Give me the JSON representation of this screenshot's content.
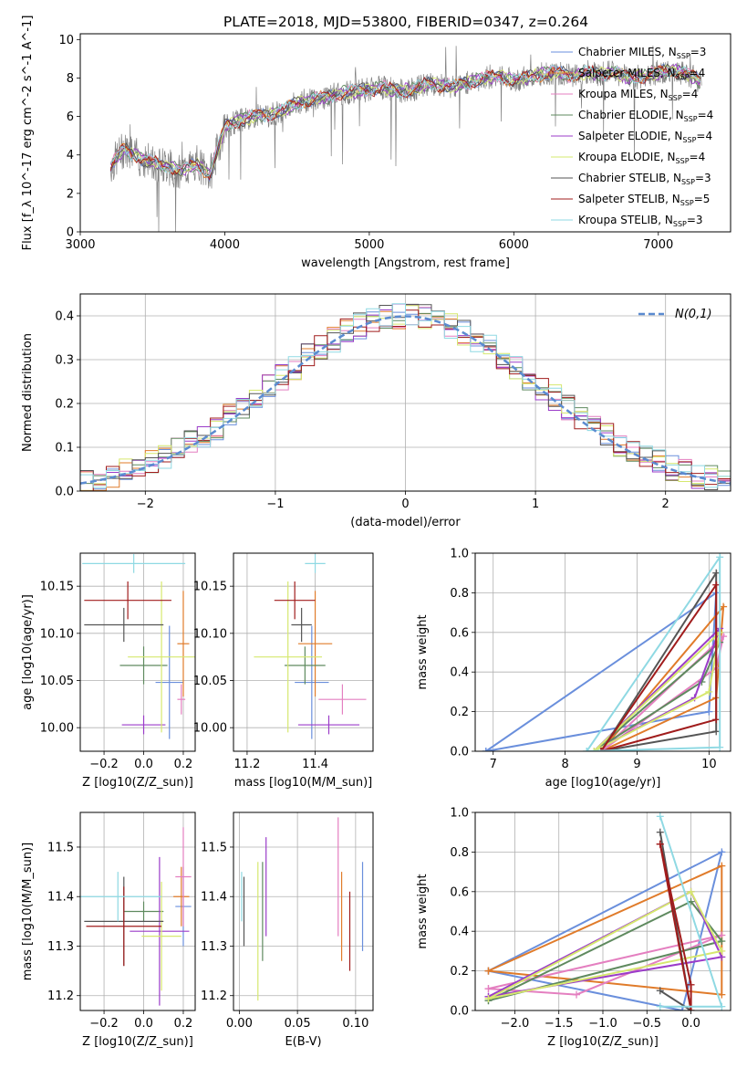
{
  "title": "PLATE=2018, MJD=53800, FIBERID=0347, z=0.264",
  "colors": {
    "grid": "#b0b0b0",
    "models": [
      "#6a8fdc",
      "#e07b2a",
      "#e47fc0",
      "#5f8a5f",
      "#9b3cc9",
      "#d6e86f",
      "#555555",
      "#a01c1c",
      "#8fd9e3"
    ],
    "data_spectrum": "#808080",
    "normal_curve": "#5b8bd0"
  },
  "legend_models": [
    {
      "label": "Chabrier MILES, N",
      "sub": "SSP",
      "tail": "=3"
    },
    {
      "label": "Salpeter MILES, N",
      "sub": "SSP",
      "tail": "=4"
    },
    {
      "label": "Kroupa MILES, N",
      "sub": "SSP",
      "tail": "=4"
    },
    {
      "label": "Chabrier ELODIE, N",
      "sub": "SSP",
      "tail": "=4"
    },
    {
      "label": "Salpeter ELODIE, N",
      "sub": "SSP",
      "tail": "=4"
    },
    {
      "label": "Kroupa ELODIE, N",
      "sub": "SSP",
      "tail": "=4"
    },
    {
      "label": "Chabrier STELIB, N",
      "sub": "SSP",
      "tail": "=3"
    },
    {
      "label": "Salpeter STELIB, N",
      "sub": "SSP",
      "tail": "=5"
    },
    {
      "label": "Kroupa STELIB, N",
      "sub": "SSP",
      "tail": "=3"
    }
  ],
  "chart_data": [
    {
      "id": "spectrum",
      "type": "line",
      "xlabel": "wavelength [Angstrom, rest frame]",
      "ylabel": "Flux [f_λ 10^-17 erg cm^-2 s^-1 A^-1]",
      "xlim": [
        3000,
        7500
      ],
      "ylim": [
        0,
        10.3
      ],
      "xticks": [
        3000,
        4000,
        5000,
        6000,
        7000
      ],
      "yticks": [
        0,
        2,
        4,
        6,
        8,
        10
      ],
      "continuum": {
        "x": [
          3200,
          3300,
          3400,
          3500,
          3600,
          3700,
          3800,
          3900,
          4000,
          4100,
          4200,
          4300,
          4400,
          4500,
          4600,
          4700,
          4800,
          4900,
          5000,
          5100,
          5200,
          5300,
          5400,
          5500,
          5600,
          5700,
          5800,
          5900,
          6000,
          6100,
          6200,
          6300,
          6400,
          6500,
          6600,
          6700,
          6800,
          6900,
          7000,
          7100,
          7200,
          7300
        ],
        "y": [
          3.3,
          4.3,
          3.9,
          3.6,
          3.4,
          3.2,
          3.5,
          3.0,
          5.5,
          5.8,
          6.0,
          6.1,
          6.3,
          6.7,
          6.9,
          7.0,
          7.2,
          7.3,
          7.4,
          7.5,
          7.3,
          7.4,
          7.7,
          7.6,
          7.6,
          7.8,
          8.0,
          8.1,
          7.9,
          8.0,
          8.2,
          8.3,
          8.1,
          8.3,
          8.2,
          8.3,
          8.0,
          8.1,
          8.3,
          8.4,
          8.2,
          7.8
        ]
      }
    },
    {
      "id": "residuals",
      "type": "line",
      "xlabel": "(data-model)/error",
      "ylabel": "Normed distribution",
      "xlim": [
        -2.5,
        2.5
      ],
      "ylim": [
        0,
        0.45
      ],
      "xticks": [
        -2,
        -1,
        0,
        1,
        2
      ],
      "yticks": [
        0.0,
        0.1,
        0.2,
        0.3,
        0.4
      ],
      "normal_label": "N(0,1)"
    },
    {
      "id": "Z_age",
      "type": "scatter",
      "xlabel": "Z [log10(Z/Z_sun)]",
      "ylabel": "age [log10(age/yr)]",
      "xlim": [
        -0.32,
        0.26
      ],
      "ylim": [
        9.975,
        10.185
      ],
      "xticks": [
        -0.2,
        0.0,
        0.2
      ],
      "yticks": [
        10.0,
        10.05,
        10.1,
        10.15
      ],
      "points": [
        {
          "x": 0.13,
          "y": 10.048,
          "xerr": 0.07,
          "yerr": 0.06
        },
        {
          "x": 0.2,
          "y": 10.089,
          "xerr": 0.03,
          "yerr": 0.056
        },
        {
          "x": 0.19,
          "y": 10.03,
          "xerr": 0.02,
          "yerr": 0.016
        },
        {
          "x": 0.0,
          "y": 10.066,
          "xerr": 0.12,
          "yerr": 0.02
        },
        {
          "x": 0.0,
          "y": 10.003,
          "xerr": 0.11,
          "yerr": 0.01
        },
        {
          "x": 0.09,
          "y": 10.075,
          "xerr": 0.17,
          "yerr": 0.08
        },
        {
          "x": -0.1,
          "y": 10.109,
          "xerr": 0.2,
          "yerr": 0.018
        },
        {
          "x": -0.08,
          "y": 10.135,
          "xerr": 0.22,
          "yerr": 0.02
        },
        {
          "x": -0.05,
          "y": 10.174,
          "xerr": 0.26,
          "yerr": 0.01
        }
      ]
    },
    {
      "id": "mass_age",
      "type": "scatter",
      "xlabel": "mass [log10(M/M_sun)]",
      "ylabel": "",
      "xlim": [
        11.16,
        11.57
      ],
      "ylim": [
        9.975,
        10.185
      ],
      "xticks": [
        11.2,
        11.4
      ],
      "yticks": [
        10.0,
        10.05,
        10.1,
        10.15
      ],
      "points": [
        {
          "x": 11.39,
          "y": 10.048,
          "xerr": 0.05,
          "yerr": 0.06
        },
        {
          "x": 11.4,
          "y": 10.089,
          "xerr": 0.05,
          "yerr": 0.056
        },
        {
          "x": 11.48,
          "y": 10.03,
          "xerr": 0.07,
          "yerr": 0.016
        },
        {
          "x": 11.37,
          "y": 10.066,
          "xerr": 0.06,
          "yerr": 0.02
        },
        {
          "x": 11.44,
          "y": 10.003,
          "xerr": 0.09,
          "yerr": 0.01
        },
        {
          "x": 11.32,
          "y": 10.075,
          "xerr": 0.1,
          "yerr": 0.08
        },
        {
          "x": 11.36,
          "y": 10.109,
          "xerr": 0.03,
          "yerr": 0.018
        },
        {
          "x": 11.34,
          "y": 10.135,
          "xerr": 0.06,
          "yerr": 0.02
        },
        {
          "x": 11.4,
          "y": 10.174,
          "xerr": 0.03,
          "yerr": 0.01
        }
      ]
    },
    {
      "id": "age_weight",
      "type": "line",
      "xlabel": "age [log10(age/yr)]",
      "ylabel": "mass weight",
      "xlim": [
        6.75,
        10.3
      ],
      "ylim": [
        0,
        1.0
      ],
      "xticks": [
        7,
        8,
        9,
        10
      ],
      "yticks": [
        0.0,
        0.2,
        0.4,
        0.6,
        0.8,
        1.0
      ],
      "series": [
        {
          "x": [
            6.9,
            10.1,
            10.0,
            6.9
          ],
          "y": [
            0.0,
            0.8,
            0.2,
            0.0
          ]
        },
        {
          "x": [
            8.5,
            10.2,
            10.1,
            8.5
          ],
          "y": [
            0.0,
            0.73,
            0.27,
            0.0
          ]
        },
        {
          "x": [
            8.5,
            10.2,
            10.1,
            8.5
          ],
          "y": [
            0.0,
            0.58,
            0.42,
            0.0
          ]
        },
        {
          "x": [
            8.4,
            10.15,
            9.9,
            8.4
          ],
          "y": [
            0.0,
            0.55,
            0.35,
            0.0
          ]
        },
        {
          "x": [
            8.4,
            9.8,
            10.15,
            8.4
          ],
          "y": [
            0.0,
            0.27,
            0.62,
            0.0
          ]
        },
        {
          "x": [
            8.4,
            10.0,
            10.15,
            8.4
          ],
          "y": [
            0.0,
            0.3,
            0.6,
            0.0
          ]
        },
        {
          "x": [
            8.5,
            10.1,
            10.1,
            8.5
          ],
          "y": [
            0.0,
            0.1,
            0.9,
            0.0
          ]
        },
        {
          "x": [
            8.5,
            10.1,
            10.1,
            8.5
          ],
          "y": [
            0.0,
            0.84,
            0.16,
            0.0
          ]
        },
        {
          "x": [
            8.3,
            10.15,
            10.15,
            8.3
          ],
          "y": [
            0.0,
            0.98,
            0.02,
            0.0
          ]
        }
      ]
    },
    {
      "id": "Z_mass",
      "type": "scatter",
      "xlabel": "Z [log10(Z/Z_sun)]",
      "ylabel": "mass [log10(M/M_sun)]",
      "xlim": [
        -0.32,
        0.26
      ],
      "ylim": [
        11.17,
        11.57
      ],
      "xticks": [
        -0.2,
        0.0,
        0.2
      ],
      "yticks": [
        11.2,
        11.3,
        11.4,
        11.5
      ],
      "points": [
        {
          "x": 0.2,
          "y": 11.38,
          "xerr": 0.04,
          "yerr": 0.08
        },
        {
          "x": 0.19,
          "y": 11.4,
          "xerr": 0.04,
          "yerr": 0.06
        },
        {
          "x": 0.2,
          "y": 11.44,
          "xerr": 0.04,
          "yerr": 0.1
        },
        {
          "x": 0.0,
          "y": 11.37,
          "xerr": 0.1,
          "yerr": 0.02
        },
        {
          "x": 0.08,
          "y": 11.33,
          "xerr": 0.15,
          "yerr": 0.15
        },
        {
          "x": 0.09,
          "y": 11.32,
          "xerr": 0.1,
          "yerr": 0.11
        },
        {
          "x": -0.1,
          "y": 11.35,
          "xerr": 0.2,
          "yerr": 0.09
        },
        {
          "x": -0.1,
          "y": 11.34,
          "xerr": 0.19,
          "yerr": 0.08
        },
        {
          "x": -0.13,
          "y": 11.4,
          "xerr": 0.22,
          "yerr": 0.05
        }
      ]
    },
    {
      "id": "ebv_mass",
      "type": "scatter",
      "xlabel": "E(B-V)",
      "ylabel": "",
      "xlim": [
        -0.005,
        0.115
      ],
      "ylim": [
        11.17,
        11.57
      ],
      "xticks": [
        0.0,
        0.05,
        0.1
      ],
      "yticks": [
        11.2,
        11.3,
        11.4,
        11.5
      ],
      "points": [
        {
          "x": 0.106,
          "y": 11.38,
          "yerr": 0.09
        },
        {
          "x": 0.088,
          "y": 11.36,
          "yerr": 0.09
        },
        {
          "x": 0.085,
          "y": 11.44,
          "yerr": 0.12
        },
        {
          "x": 0.02,
          "y": 11.37,
          "yerr": 0.1
        },
        {
          "x": 0.023,
          "y": 11.42,
          "yerr": 0.1
        },
        {
          "x": 0.016,
          "y": 11.33,
          "yerr": 0.14
        },
        {
          "x": 0.004,
          "y": 11.37,
          "yerr": 0.07
        },
        {
          "x": 0.095,
          "y": 11.33,
          "yerr": 0.08
        },
        {
          "x": 0.002,
          "y": 11.4,
          "yerr": 0.05
        }
      ]
    },
    {
      "id": "Z_weight",
      "type": "line",
      "xlabel": "Z [log10(Z/Z_sun)]",
      "ylabel": "mass weight",
      "xlim": [
        -2.45,
        0.45
      ],
      "ylim": [
        0,
        1.0
      ],
      "xticks": [
        -2.0,
        -1.5,
        -1.0,
        -0.5,
        0.0
      ],
      "yticks": [
        0.0,
        0.2,
        0.4,
        0.6,
        0.8,
        1.0
      ],
      "series": [
        {
          "x": [
            -2.3,
            0.35,
            -0.1,
            -2.3
          ],
          "y": [
            0.2,
            0.8,
            0.0,
            0.2
          ]
        },
        {
          "x": [
            -2.3,
            0.35,
            0.35,
            -2.3
          ],
          "y": [
            0.2,
            0.73,
            0.08,
            0.2
          ]
        },
        {
          "x": [
            -2.3,
            -1.3,
            0.35,
            -2.3
          ],
          "y": [
            0.11,
            0.08,
            0.38,
            0.11
          ]
        },
        {
          "x": [
            -2.3,
            0.0,
            0.35,
            -2.3
          ],
          "y": [
            0.05,
            0.55,
            0.35,
            0.05
          ]
        },
        {
          "x": [
            -2.3,
            0.0,
            0.35,
            -2.3
          ],
          "y": [
            0.07,
            0.6,
            0.27,
            0.07
          ]
        },
        {
          "x": [
            -2.3,
            0.0,
            0.35,
            -2.3
          ],
          "y": [
            0.06,
            0.6,
            0.3,
            0.06
          ]
        },
        {
          "x": [
            -0.35,
            0.0,
            -0.35
          ],
          "y": [
            0.1,
            0.0,
            0.9
          ]
        },
        {
          "x": [
            -0.35,
            0.0,
            0.0,
            -0.35
          ],
          "y": [
            0.84,
            0.13,
            0.0,
            0.84
          ]
        },
        {
          "x": [
            -0.35,
            0.35,
            -0.35
          ],
          "y": [
            0.02,
            0.02,
            0.98
          ]
        }
      ]
    }
  ]
}
